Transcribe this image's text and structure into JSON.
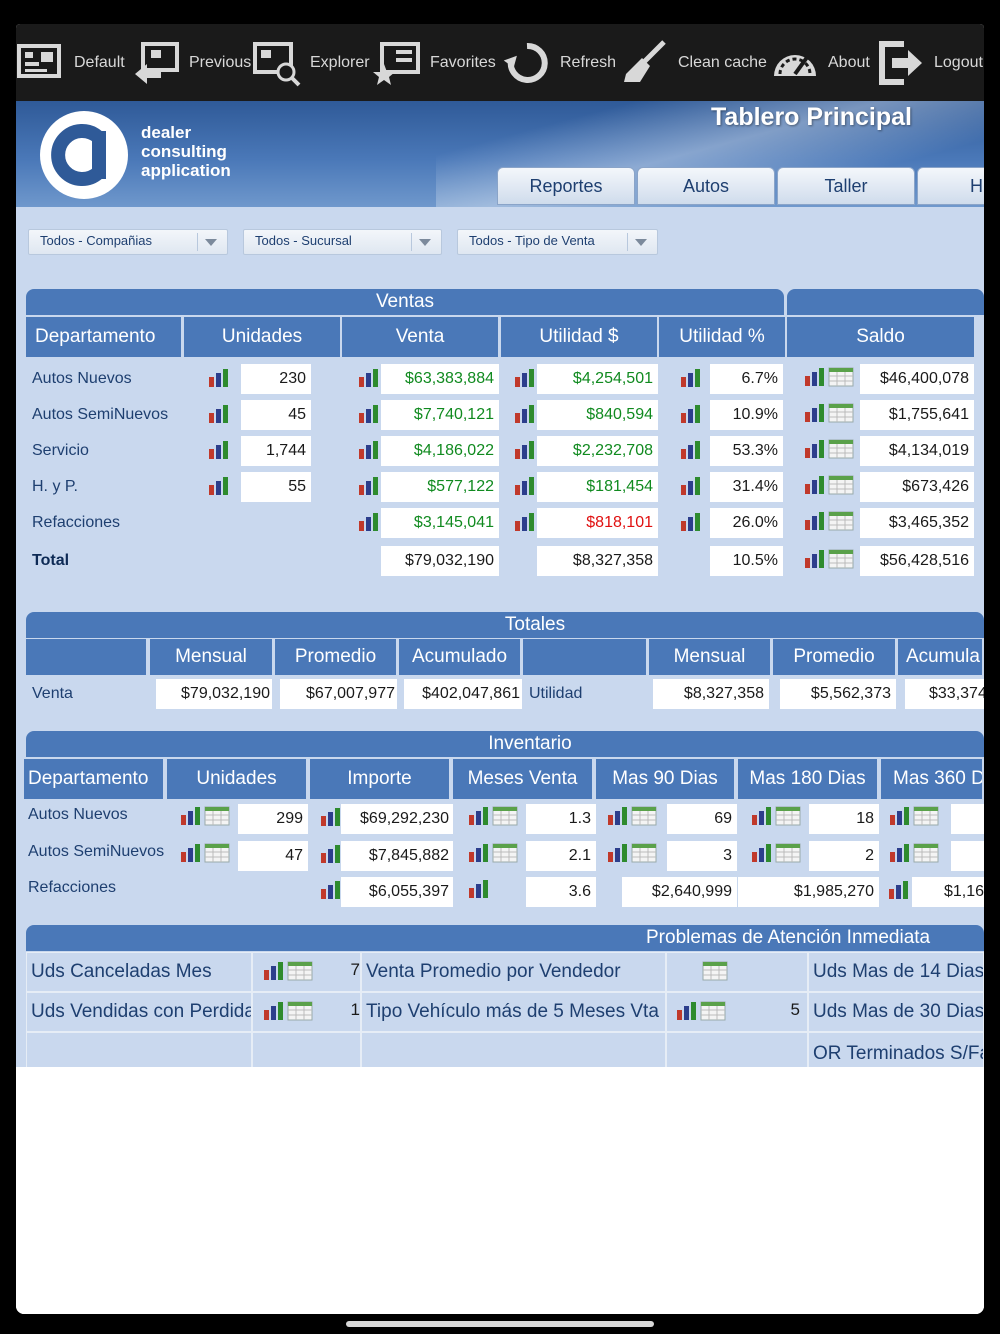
{
  "toolbar": {
    "items": [
      {
        "label": "Default",
        "icon": "monitor-icon"
      },
      {
        "label": "Previous",
        "icon": "back-arrow-icon"
      },
      {
        "label": "Explorer",
        "icon": "explorer-search-icon"
      },
      {
        "label": "Favorites",
        "icon": "favorites-star-icon"
      },
      {
        "label": "Refresh",
        "icon": "refresh-icon"
      },
      {
        "label": "Clean cache",
        "icon": "broom-icon"
      },
      {
        "label": "About",
        "icon": "gauge-icon"
      },
      {
        "label": "Logout",
        "icon": "logout-icon"
      }
    ]
  },
  "header": {
    "logo_lines": [
      "dealer",
      "consulting",
      "application"
    ],
    "title": "Tablero Principal",
    "tabs": [
      "Reportes",
      "Autos",
      "Taller",
      "H. y"
    ]
  },
  "filters": [
    "Todos - Compañias",
    "Todos - Sucursal",
    "Todos - Tipo de Venta"
  ],
  "ventas": {
    "title": "Ventas",
    "saldo_title": "Saldo",
    "headers": [
      "Departamento",
      "Unidades",
      "Venta",
      "Utilidad $",
      "Utilidad %",
      "Saldo"
    ],
    "rows": [
      {
        "dept": "Autos Nuevos",
        "unidades": "230",
        "venta": "$63,383,884",
        "utilidad": "$4,254,501",
        "utilidad_pct": "6.7%",
        "saldo": "$46,400,078"
      },
      {
        "dept": "Autos SemiNuevos",
        "unidades": "45",
        "venta": "$7,740,121",
        "utilidad": "$840,594",
        "utilidad_pct": "10.9%",
        "saldo": "$1,755,641"
      },
      {
        "dept": "Servicio",
        "unidades": "1,744",
        "venta": "$4,186,022",
        "utilidad": "$2,232,708",
        "utilidad_pct": "53.3%",
        "saldo": "$4,134,019"
      },
      {
        "dept": "H. y P.",
        "unidades": "55",
        "venta": "$577,122",
        "utilidad": "$181,454",
        "utilidad_pct": "31.4%",
        "saldo": "$673,426"
      },
      {
        "dept": "Refacciones",
        "unidades": "",
        "venta": "$3,145,041",
        "utilidad": "$818,101",
        "utilidad_pct": "26.0%",
        "saldo": "$3,465,352"
      }
    ],
    "total": {
      "dept": "Total",
      "venta": "$79,032,190",
      "utilidad": "$8,327,358",
      "utilidad_pct": "10.5%",
      "saldo": "$56,428,516"
    }
  },
  "totales": {
    "title": "Totales",
    "headers": [
      "Mensual",
      "Promedio",
      "Acumulado",
      "Mensual",
      "Promedio",
      "Acumula"
    ],
    "venta_label": "Venta",
    "venta": [
      "$79,032,190",
      "$67,007,977",
      "$402,047,861"
    ],
    "utilidad_label": "Utilidad",
    "utilidad": [
      "$8,327,358",
      "$5,562,373",
      "$33,374"
    ]
  },
  "inventario": {
    "title": "Inventario",
    "headers": [
      "Departamento",
      "Unidades",
      "Importe",
      "Meses Venta",
      "Mas 90 Dias",
      "Mas 180 Dias",
      "Mas 360 D"
    ],
    "rows": [
      {
        "dept": "Autos Nuevos",
        "unidades": "299",
        "importe": "$69,292,230",
        "meses": "1.3",
        "mas90": "69",
        "mas180": "18",
        "mas360": ""
      },
      {
        "dept": "Autos SemiNuevos",
        "unidades": "47",
        "importe": "$7,845,882",
        "meses": "2.1",
        "mas90": "3",
        "mas180": "2",
        "mas360": ""
      },
      {
        "dept": "Refacciones",
        "unidades": "",
        "importe": "$6,055,397",
        "meses": "3.6",
        "mas90": "$2,640,999",
        "mas180": "$1,985,270",
        "mas360": "$1,16"
      }
    ]
  },
  "problemas": {
    "title": "Problemas de Atención Inmediata",
    "left": [
      {
        "label": "Uds Canceladas Mes",
        "value": "7"
      },
      {
        "label": "Uds Vendidas con Perdida",
        "value": "1"
      }
    ],
    "middle": [
      {
        "label": "Venta Promedio por Vendedor",
        "value": ""
      },
      {
        "label": "Tipo Vehículo más de 5 Meses Vta",
        "value": "5"
      }
    ],
    "right": [
      "Uds Mas de 14 Dias",
      "Uds Mas de 30 Dias",
      "OR Terminados S/Fa"
    ]
  },
  "colors": {
    "header_blue": "#4a78b8",
    "panel_bg": "#c9d8ee",
    "positive": "#108a1f",
    "negative": "#e01010"
  }
}
